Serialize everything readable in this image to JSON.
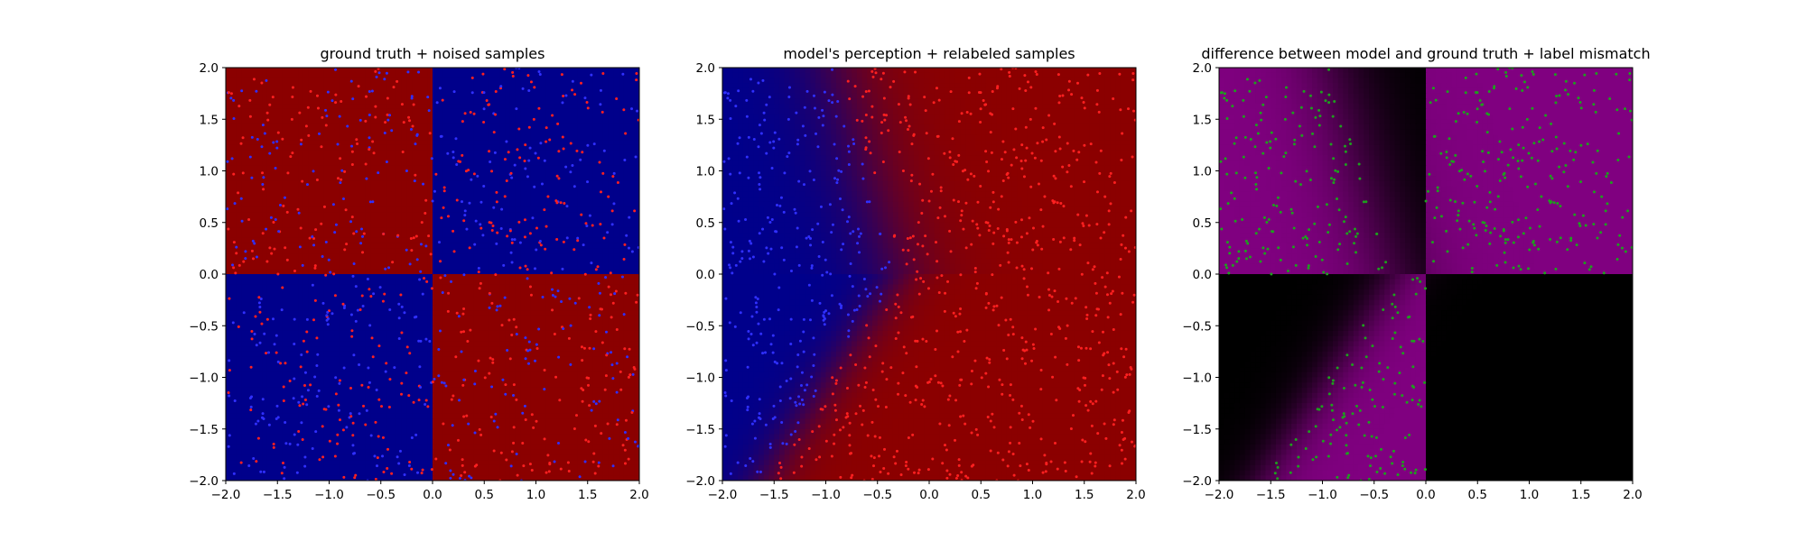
{
  "chart_data": [
    {
      "type": "heatmap",
      "title": "ground truth + noised samples",
      "xlim": [
        -2.0,
        2.0
      ],
      "ylim": [
        -2.0,
        2.0
      ],
      "xticks": [
        "−2.0",
        "−1.5",
        "−1.0",
        "−0.5",
        "0.0",
        "0.5",
        "1.0",
        "1.5",
        "2.0"
      ],
      "yticks": [
        "−2.0",
        "−1.5",
        "−1.0",
        "−0.5",
        "0.0",
        "0.5",
        "1.0",
        "1.5",
        "2.0"
      ],
      "background": {
        "description_of_classes": "XOR quadrants",
        "quadrants": {
          "top-left": "#8b0000",
          "top-right": "#00008b",
          "bottom-left": "#00008b",
          "bottom-right": "#8b0000"
        }
      },
      "samples": {
        "count_estimate": 1000,
        "colors": [
          "#ff2020",
          "#3030ff"
        ],
        "noise": "labels flipped randomly"
      }
    },
    {
      "type": "heatmap",
      "title": "model's perception + relabeled samples",
      "xlim": [
        -2.0,
        2.0
      ],
      "ylim": [
        -2.0,
        2.0
      ],
      "xticks": [
        "−2.0",
        "−1.5",
        "−1.0",
        "−0.5",
        "0.0",
        "0.5",
        "1.0",
        "1.5",
        "2.0"
      ],
      "yticks": [
        "−2.0",
        "−1.5",
        "−1.0",
        "−0.5",
        "0.0",
        "0.5",
        "1.0",
        "1.5",
        "2.0"
      ],
      "background": {
        "class_a_color": "#00008b",
        "class_b_color": "#8b0000",
        "boundary_points": [
          [
            -1.6,
            -2.0
          ],
          [
            -0.3,
            0.0
          ],
          [
            -0.9,
            2.0
          ]
        ]
      },
      "samples": {
        "count_estimate": 1000,
        "colors": [
          "#ff2020",
          "#3030ff"
        ]
      }
    },
    {
      "type": "heatmap",
      "title": "difference between model and ground truth + label mismatch",
      "xlim": [
        -2.0,
        2.0
      ],
      "ylim": [
        -2.0,
        2.0
      ],
      "xticks": [
        "−2.0",
        "−1.5",
        "−1.0",
        "−0.5",
        "0.0",
        "0.5",
        "1.0",
        "1.5",
        "2.0"
      ],
      "yticks": [
        "−2.0",
        "−1.5",
        "−1.0",
        "−0.5",
        "0.0",
        "0.5",
        "1.0",
        "1.5",
        "2.0"
      ],
      "background": {
        "match_color": "#000000",
        "mismatch_color": "#800080"
      },
      "samples": {
        "count_estimate": 500,
        "colors": [
          "#1ea01e"
        ],
        "meaning": "label mismatch"
      }
    }
  ]
}
